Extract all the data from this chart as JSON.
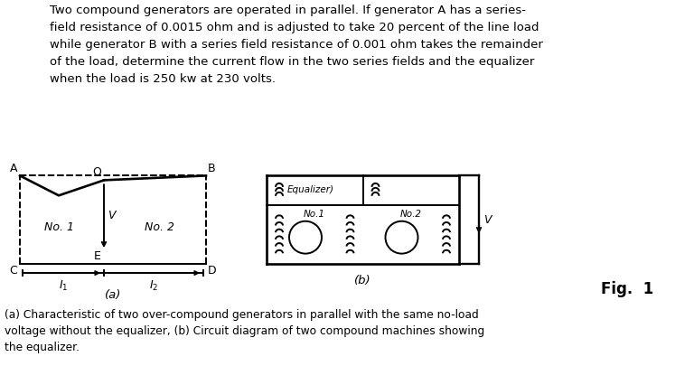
{
  "bg": "#ffffff",
  "black": "#000000",
  "title": "Two compound generators are operated in parallel. If generator A has a series-\nfield resistance of 0.0015 ohm and is adjusted to take 20 percent of the line load\nwhile generator B with a series field resistance of 0.001 ohm takes the remainder\nof the load, determine the current flow in the two series fields and the equalizer\nwhen the load is 250 kw at 230 volts.",
  "caption": "(a) Characteristic of two over-compound generators in parallel with the same no-load\nvoltage without the equalizer, (b) Circuit diagram of two compound machines showing\nthe equalizer.",
  "fig_label": "Fig.  1",
  "title_fontsize": 9.5,
  "caption_fontsize": 8.8,
  "fig_fontsize": 12,
  "lw": 1.4
}
